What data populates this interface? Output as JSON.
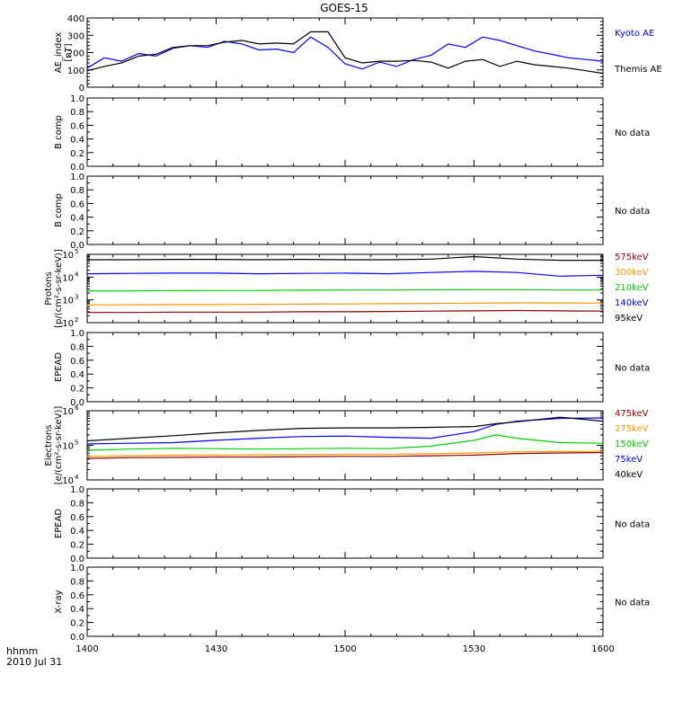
{
  "title": "GOES-15",
  "x_axis": {
    "ticks": [
      "1400",
      "1430",
      "1500",
      "1530",
      "1600"
    ],
    "label_line1": "hhmm",
    "label_line2": "2010 Jul 31"
  },
  "colors": {
    "black": "#000000",
    "blue": "#0000ff",
    "green": "#00cc00",
    "orange": "#ff9900",
    "red": "#990000",
    "dark_red": "#880000"
  },
  "chart_data": [
    {
      "id": "ae",
      "type": "line",
      "ylabel": [
        "AE_index",
        "[nT]"
      ],
      "ylim": [
        0,
        400
      ],
      "yticks": [
        0,
        100,
        200,
        300,
        400
      ],
      "x": [
        0,
        4,
        8,
        12,
        16,
        20,
        24,
        28,
        32,
        36,
        40,
        44,
        48,
        52,
        56,
        60,
        64,
        68,
        72,
        76,
        80,
        84,
        88,
        92,
        96,
        100,
        104,
        108,
        112,
        116,
        120
      ],
      "series": [
        {
          "name": "Kyoto AE",
          "color": "#0000ff",
          "values": [
            110,
            170,
            150,
            195,
            180,
            225,
            240,
            230,
            265,
            250,
            215,
            220,
            200,
            290,
            230,
            135,
            105,
            145,
            120,
            160,
            185,
            250,
            230,
            290,
            270,
            240,
            210,
            190,
            170,
            160,
            150
          ]
        },
        {
          "name": "Themis AE",
          "color": "#000000",
          "values": [
            95,
            120,
            140,
            180,
            190,
            230,
            240,
            240,
            260,
            270,
            250,
            255,
            250,
            320,
            320,
            170,
            140,
            150,
            150,
            155,
            145,
            110,
            150,
            160,
            120,
            150,
            130,
            120,
            110,
            95,
            80
          ]
        }
      ],
      "side_labels": [
        {
          "text": "Kyoto AE",
          "color": "#0000ff"
        },
        {
          "text": "Themis AE",
          "color": "#000000"
        }
      ]
    },
    {
      "id": "b1",
      "type": "line",
      "ylabel": [
        "B comp"
      ],
      "ylim": [
        0,
        1
      ],
      "yticks": [
        0.0,
        0.2,
        0.4,
        0.6,
        0.8,
        1.0
      ],
      "series": [],
      "side_labels": [
        {
          "text": "No data",
          "color": "#000000"
        }
      ]
    },
    {
      "id": "b2",
      "type": "line",
      "ylabel": [
        "B comp"
      ],
      "ylim": [
        0,
        1
      ],
      "yticks": [
        0.0,
        0.2,
        0.4,
        0.6,
        0.8,
        1.0
      ],
      "series": [],
      "side_labels": [
        {
          "text": "No data",
          "color": "#000000"
        }
      ]
    },
    {
      "id": "protons",
      "type": "line",
      "log": true,
      "ylabel": [
        "Protons",
        "[p/(cm²-s-sr-keV)]"
      ],
      "ylim": [
        100,
        100000
      ],
      "ytick_exponents": [
        2,
        3,
        4,
        5
      ],
      "x": [
        0,
        10,
        20,
        30,
        40,
        50,
        60,
        70,
        80,
        90,
        100,
        110,
        120
      ],
      "series": [
        {
          "name": "575keV",
          "color": "#880000",
          "values": [
            280,
            280,
            290,
            290,
            290,
            300,
            300,
            310,
            320,
            330,
            340,
            330,
            320
          ]
        },
        {
          "name": "300keV",
          "color": "#ff9900",
          "values": [
            600,
            610,
            620,
            620,
            640,
            650,
            660,
            680,
            700,
            720,
            740,
            730,
            720
          ]
        },
        {
          "name": "210keV",
          "color": "#00cc00",
          "values": [
            2500,
            2500,
            2550,
            2600,
            2600,
            2650,
            2700,
            2700,
            2750,
            2800,
            2800,
            2700,
            2700
          ]
        },
        {
          "name": "140keV",
          "color": "#0000ff",
          "values": [
            14000,
            14500,
            15000,
            15000,
            14000,
            14500,
            15000,
            14000,
            16000,
            18000,
            16000,
            11000,
            12000
          ]
        },
        {
          "name": "95keV",
          "color": "#000000",
          "values": [
            58000,
            58000,
            60000,
            60000,
            58000,
            60000,
            58000,
            58000,
            62000,
            80000,
            62000,
            55000,
            55000
          ]
        }
      ],
      "side_labels": [
        {
          "text": "575keV",
          "color": "#880000"
        },
        {
          "text": "300keV",
          "color": "#ff9900"
        },
        {
          "text": "210keV",
          "color": "#00cc00"
        },
        {
          "text": "140keV",
          "color": "#0000ff"
        },
        {
          "text": "95keV",
          "color": "#000000"
        }
      ]
    },
    {
      "id": "epead1",
      "type": "line",
      "ylabel": [
        "EPEAD"
      ],
      "ylim": [
        0,
        1
      ],
      "yticks": [
        0.0,
        0.2,
        0.4,
        0.6,
        0.8,
        1.0
      ],
      "series": [],
      "side_labels": [
        {
          "text": "No data",
          "color": "#000000"
        }
      ]
    },
    {
      "id": "electrons",
      "type": "line",
      "log": true,
      "ylabel": [
        "Electrons",
        "[e/(cm²-s-sr-keV)]"
      ],
      "ylim": [
        10000,
        1000000
      ],
      "ytick_exponents": [
        4,
        5,
        6
      ],
      "x": [
        0,
        10,
        20,
        30,
        40,
        50,
        60,
        70,
        80,
        90,
        95,
        100,
        110,
        120
      ],
      "series": [
        {
          "name": "475keV",
          "color": "#880000",
          "values": [
            42000,
            44000,
            45000,
            46000,
            46000,
            47000,
            48000,
            48000,
            50000,
            52000,
            55000,
            58000,
            60000,
            62000
          ]
        },
        {
          "name": "275keV",
          "color": "#ff9900",
          "values": [
            48000,
            50000,
            52000,
            52000,
            53000,
            54000,
            55000,
            55000,
            57000,
            60000,
            63000,
            65000,
            66000,
            67000
          ]
        },
        {
          "name": "150keV",
          "color": "#00cc00",
          "values": [
            72000,
            78000,
            82000,
            80000,
            78000,
            80000,
            82000,
            80000,
            95000,
            140000,
            200000,
            160000,
            120000,
            115000
          ]
        },
        {
          "name": "75keV",
          "color": "#0000ff",
          "values": [
            110000,
            115000,
            120000,
            140000,
            160000,
            180000,
            185000,
            170000,
            160000,
            250000,
            400000,
            500000,
            600000,
            620000
          ]
        },
        {
          "name": "40keV",
          "color": "#000000",
          "values": [
            135000,
            160000,
            190000,
            230000,
            270000,
            310000,
            320000,
            320000,
            330000,
            350000,
            420000,
            480000,
            650000,
            500000
          ]
        }
      ],
      "side_labels": [
        {
          "text": "475keV",
          "color": "#880000"
        },
        {
          "text": "275keV",
          "color": "#ff9900"
        },
        {
          "text": "150keV",
          "color": "#00cc00"
        },
        {
          "text": "75keV",
          "color": "#0000ff"
        },
        {
          "text": "40keV",
          "color": "#000000"
        }
      ]
    },
    {
      "id": "epead2",
      "type": "line",
      "ylabel": [
        "EPEAD"
      ],
      "ylim": [
        0,
        1
      ],
      "yticks": [
        0.0,
        0.2,
        0.4,
        0.6,
        0.8,
        1.0
      ],
      "series": [],
      "side_labels": [
        {
          "text": "No data",
          "color": "#000000"
        }
      ]
    },
    {
      "id": "xray",
      "type": "line",
      "ylabel": [
        "X-ray"
      ],
      "ylim": [
        0,
        1
      ],
      "yticks": [
        0.0,
        0.2,
        0.4,
        0.6,
        0.8,
        1.0
      ],
      "series": [],
      "side_labels": [
        {
          "text": "No data",
          "color": "#000000"
        }
      ]
    }
  ]
}
